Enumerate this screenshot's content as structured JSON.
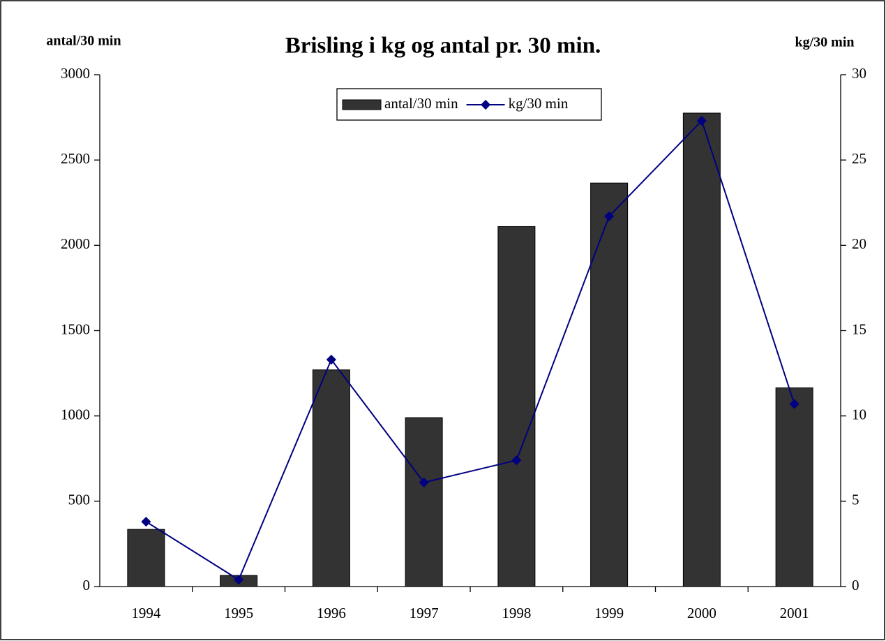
{
  "chart_data": {
    "type": "bar_line",
    "title": "Brisling i kg og antal pr. 30 min.",
    "y_label": "antal/30 min",
    "y2_label": "kg/30 min",
    "categories": [
      "1994",
      "1995",
      "1996",
      "1997",
      "1998",
      "1999",
      "2000",
      "2001"
    ],
    "series": [
      {
        "name": "antal/30 min",
        "type": "bar",
        "color": "#333333",
        "values": [
          335,
          65,
          1270,
          990,
          2110,
          2365,
          2775,
          1165
        ]
      },
      {
        "name": "kg/30 min",
        "type": "line",
        "axis": "y2",
        "color": "#000080",
        "values": [
          3.8,
          0.4,
          13.3,
          6.1,
          7.4,
          21.7,
          27.3,
          10.7
        ]
      }
    ],
    "ylim": [
      0,
      3000
    ],
    "yticks": [
      0,
      500,
      1000,
      1500,
      2000,
      2500,
      3000
    ],
    "y2lim": [
      0,
      30
    ],
    "y2ticks": [
      0,
      5,
      10,
      15,
      20,
      25,
      30
    ],
    "legend": "top"
  }
}
